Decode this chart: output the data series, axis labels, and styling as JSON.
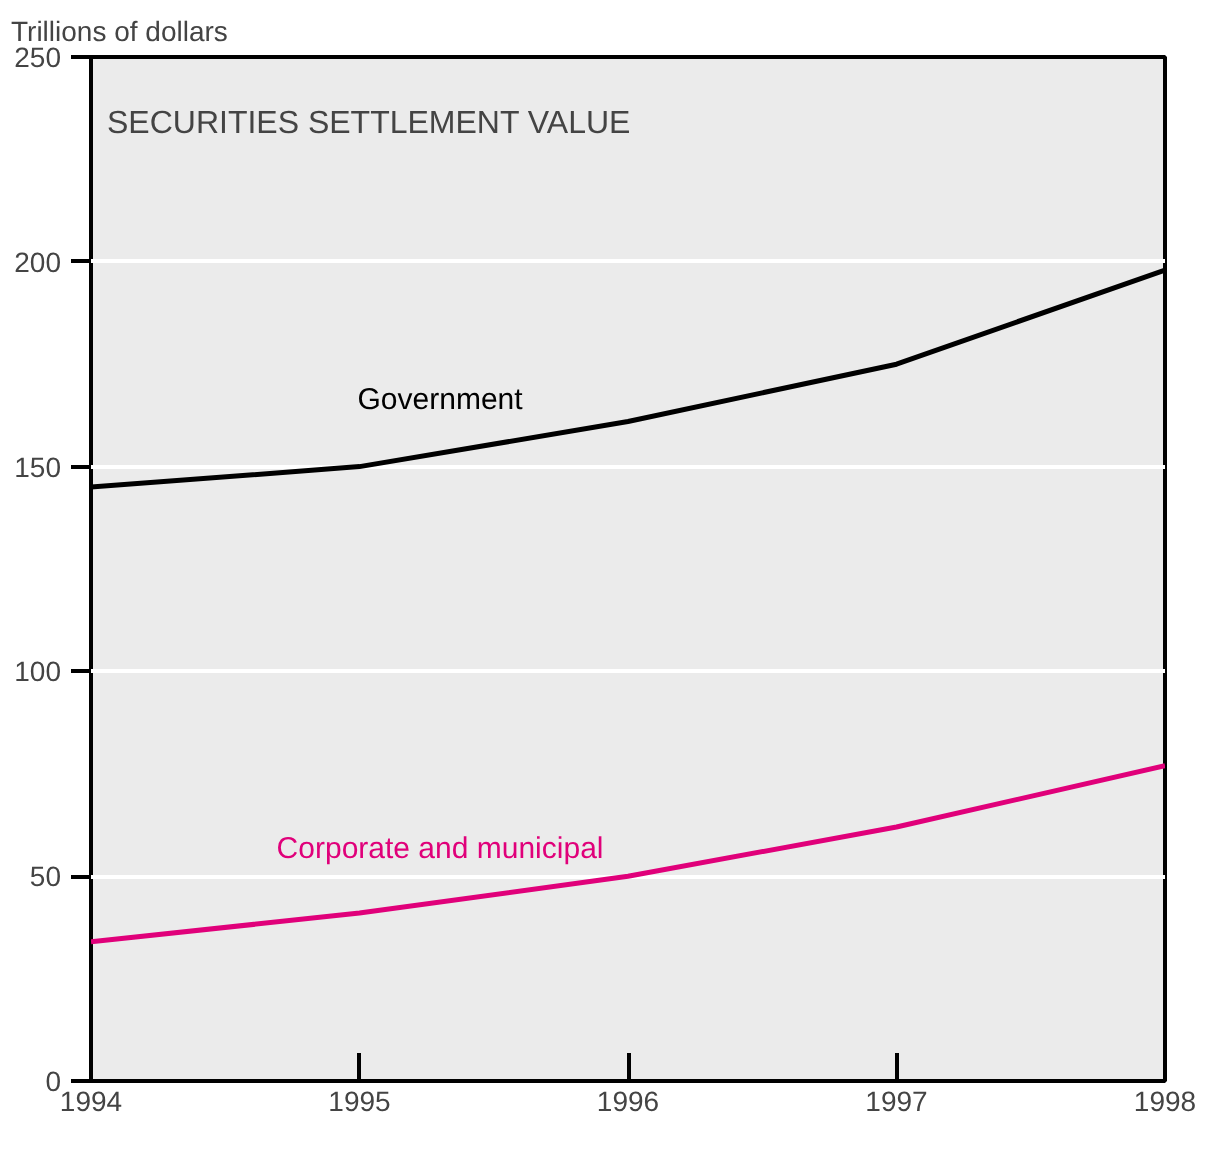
{
  "chart_data": {
    "type": "line",
    "title": "SECURITIES SETTLEMENT VALUE",
    "ylabel": "Trillions of dollars",
    "x": [
      1994,
      1995,
      1996,
      1997,
      1998
    ],
    "series": [
      {
        "name": "Government",
        "color": "#000000",
        "values": [
          145,
          150,
          161,
          175,
          198
        ]
      },
      {
        "name": "Corporate and municipal",
        "color": "#e0007a",
        "values": [
          34,
          41,
          50,
          62,
          77
        ]
      }
    ],
    "xlim": [
      1994,
      1998
    ],
    "xticks": [
      1994,
      1995,
      1996,
      1997,
      1998
    ],
    "ylim": [
      0,
      250
    ],
    "yticks": [
      0,
      50,
      100,
      150,
      200,
      250
    ],
    "grid": "y",
    "legend": false,
    "marker": "none",
    "line_style": "solid"
  }
}
